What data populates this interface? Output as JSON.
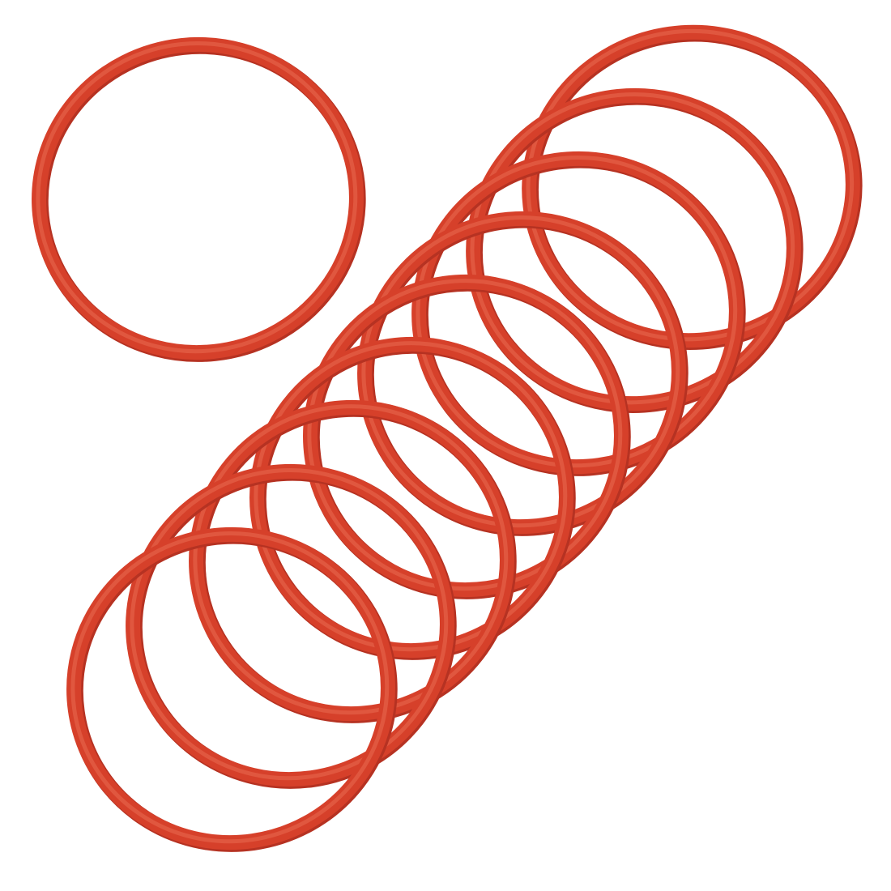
{
  "photo": {
    "subject": "o-rings",
    "background_color": "#ffffff",
    "ring_color": "#d6402a",
    "ring_highlight_color": "#ea6a50",
    "ring_shadow_color": "#b63222",
    "ring_count": 10
  }
}
